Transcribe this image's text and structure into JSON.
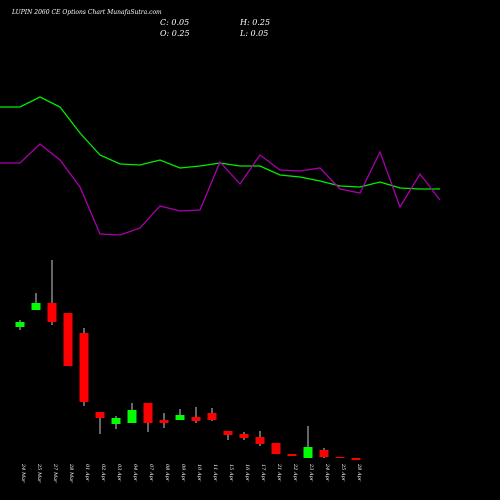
{
  "title": "LUPIN 2060 CE Options Chart MunafaSutra.com",
  "ohlc": {
    "close": "C: 0.05",
    "high": "H: 0.25",
    "open": "O: 0.25",
    "low": "L: 0.05"
  },
  "chart_data": [
    {
      "type": "line",
      "ylim": [
        0,
        250
      ],
      "series": [
        {
          "color": "#00ee00",
          "values": [
            143,
            143,
            153,
            143,
            117,
            95,
            86,
            85,
            90,
            82,
            84,
            87,
            84,
            84,
            75,
            73,
            69,
            64,
            63,
            68,
            62,
            61,
            61
          ]
        },
        {
          "color": "#aa00aa",
          "values": [
            87,
            87,
            106,
            90,
            63,
            16,
            15,
            22,
            44,
            39,
            40,
            88,
            66,
            95,
            80,
            79,
            82,
            61,
            57,
            98,
            43,
            76,
            50
          ]
        }
      ]
    },
    {
      "type": "candlestick",
      "ylim": [
        0,
        21
      ],
      "up_color": "#00ff00",
      "down_color": "#ff0000",
      "categories": [
        "24 Mar",
        "25 Mar",
        "27 Mar",
        "28 Mar",
        "01 Apr",
        "02 Apr",
        "03 Apr",
        "04 Apr",
        "07 Apr",
        "08 Apr",
        "09 Apr",
        "10 Apr",
        "11 Apr",
        "15 Apr",
        "16 Apr",
        "17 Apr",
        "21 Apr",
        "22 Apr",
        "23 Apr",
        "24 Apr",
        "25 Apr",
        "28 Apr"
      ],
      "open": [
        13.35,
        15.05,
        15.75,
        14.75,
        12.75,
        4.85,
        3.65,
        3.75,
        5.75,
        4.05,
        4.05,
        4.35,
        4.75,
        2.95,
        2.65,
        2.35,
        1.75,
        0.65,
        0.25,
        1.05,
        0.35,
        0.25
      ],
      "high": [
        14.05,
        16.75,
        20.05,
        14.75,
        13.25,
        4.85,
        4.45,
        5.75,
        5.75,
        4.75,
        5.15,
        5.35,
        5.25,
        2.95,
        2.85,
        2.95,
        1.75,
        0.65,
        3.45,
        1.25,
        0.35,
        0.25
      ],
      "low": [
        13.05,
        15.05,
        13.55,
        9.45,
        5.45,
        2.65,
        3.15,
        3.75,
        2.85,
        3.25,
        4.05,
        3.75,
        3.95,
        2.05,
        2.05,
        1.45,
        0.65,
        0.45,
        0.25,
        0.25,
        0.25,
        0.05
      ],
      "close": [
        13.85,
        15.75,
        13.85,
        9.45,
        5.85,
        4.25,
        4.25,
        5.05,
        3.75,
        3.75,
        4.55,
        3.95,
        4.05,
        2.55,
        2.25,
        1.65,
        0.65,
        0.45,
        1.35,
        0.35,
        0.25,
        0.05
      ]
    }
  ]
}
